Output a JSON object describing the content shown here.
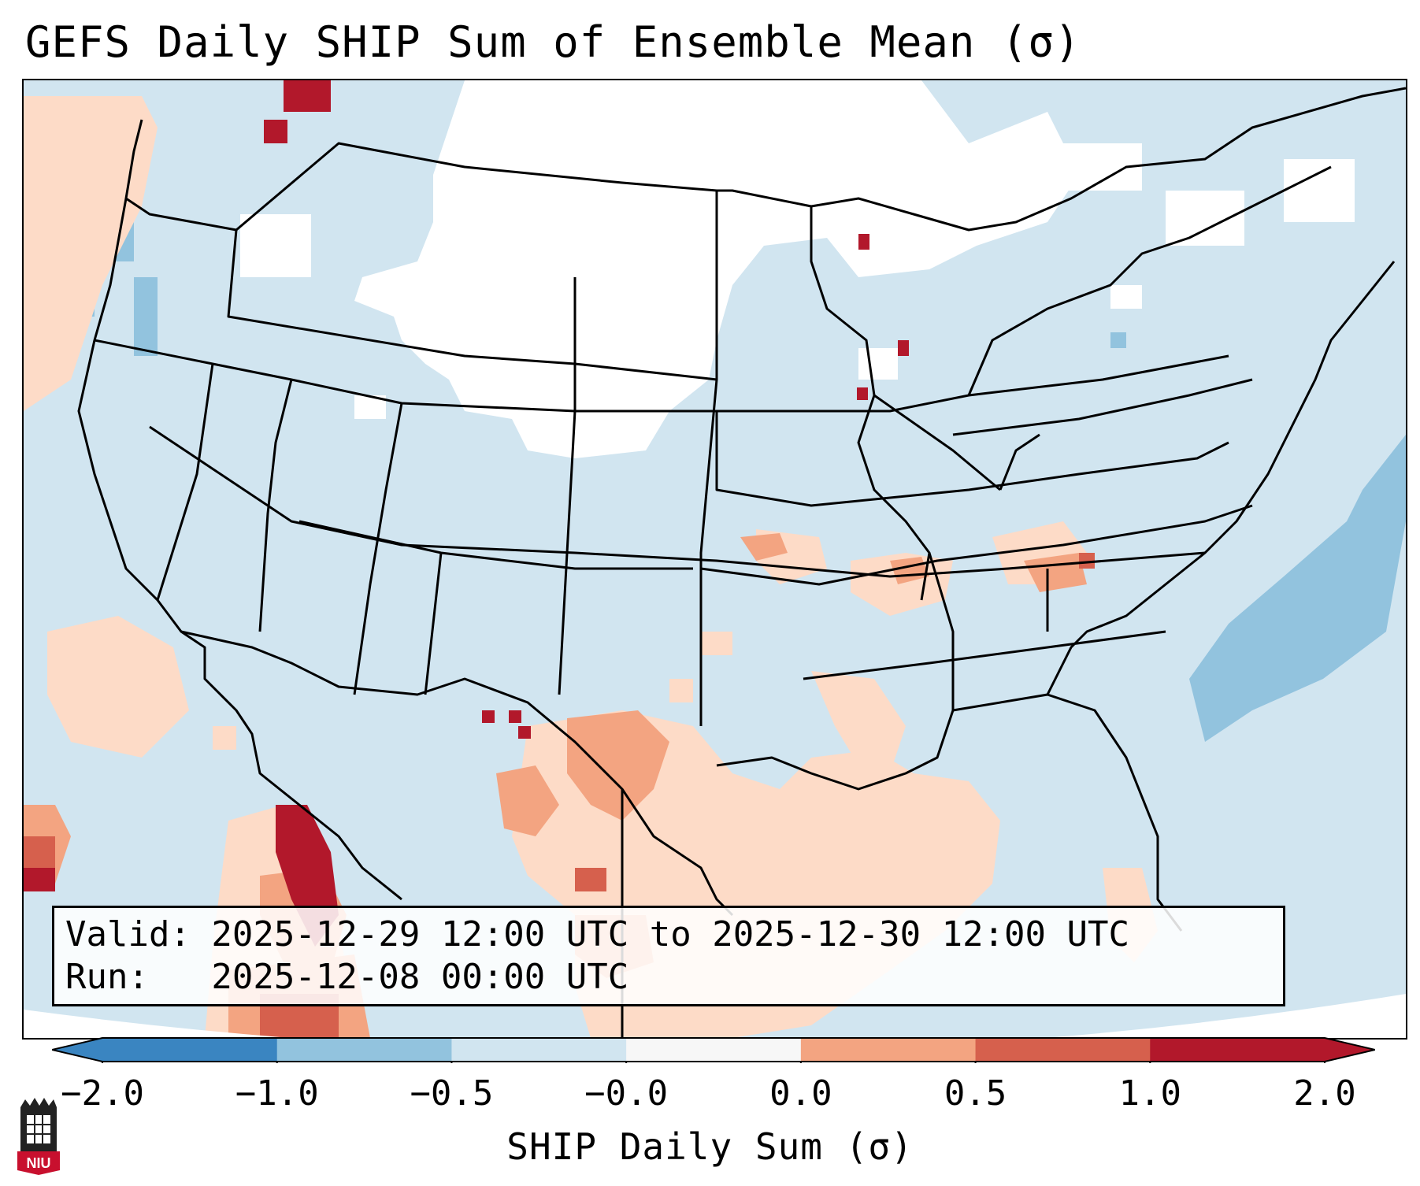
{
  "title": "GEFS Daily SHIP Sum of Ensemble Mean (σ)",
  "info": {
    "valid": "Valid: 2025-12-29 12:00 UTC to 2025-12-30 12:00 UTC",
    "run": "Run:   2025-12-08 00:00 UTC"
  },
  "colorbar": {
    "label": "SHIP Daily Sum (σ)",
    "ticks": [
      "−2.0",
      "−1.0",
      "−0.5",
      "−0.0",
      "0.0",
      "0.5",
      "1.0",
      "2.0"
    ],
    "colors": [
      "#3a85c1",
      "#92c3de",
      "#d1e5f0",
      "#f7f7f7",
      "#fddbc7",
      "#f3a481",
      "#d6604d",
      "#b2182b"
    ],
    "extend": "both"
  },
  "map": {
    "region": "CONUS",
    "colors": {
      "background_value": "#d1e5f0",
      "no_signal": "#ffffff",
      "light_pos": "#fddbc7",
      "mid_pos": "#f3a481",
      "strong_pos": "#d6604d",
      "max_pos": "#b2182b",
      "neg": "#92c3de",
      "border": "#000000"
    }
  },
  "logo": {
    "text": "NIU",
    "icon": "niu-castle-logo-icon"
  }
}
